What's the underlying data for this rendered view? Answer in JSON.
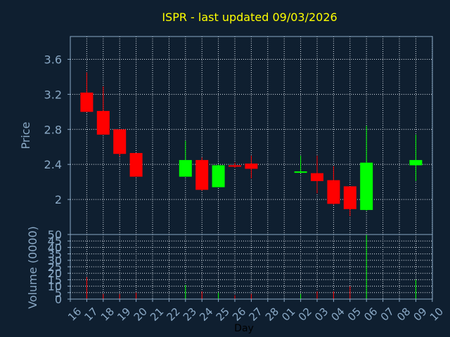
{
  "title": "ISPR - last updated 09/03/2026",
  "colors": {
    "background": "#0f1f30",
    "plot_border": "#8aa9c6",
    "grid": "#dde4ec",
    "title": "#ffff00",
    "label": "#8aa9c6",
    "up": "#00ff00",
    "down": "#ff0000",
    "axis_title": "#000000"
  },
  "chart_data": [
    {
      "type": "candlestick",
      "ylabel": "Price",
      "ylim": [
        1.6,
        3.86
      ],
      "yticks": [
        2,
        2.4,
        2.8,
        3.2,
        3.6
      ],
      "ytick_labels": [
        "2",
        "2.4",
        "2.8",
        "3.2",
        "3.6"
      ],
      "grid": true,
      "x_categories": [
        "16",
        "17",
        "18",
        "19",
        "20",
        "21",
        "22",
        "23",
        "24",
        "25",
        "26",
        "27",
        "28",
        "01",
        "02",
        "03",
        "04",
        "05",
        "06",
        "07",
        "08",
        "09",
        "10"
      ],
      "candles": [
        {
          "day": "17",
          "open": 3.22,
          "high": 3.45,
          "low": 3.0,
          "close": 3.0
        },
        {
          "day": "18",
          "open": 3.01,
          "high": 3.29,
          "low": 2.74,
          "close": 2.74
        },
        {
          "day": "19",
          "open": 2.8,
          "high": 2.8,
          "low": 2.49,
          "close": 2.52
        },
        {
          "day": "20",
          "open": 2.53,
          "high": 2.53,
          "low": 2.26,
          "close": 2.26
        },
        {
          "day": "23",
          "open": 2.26,
          "high": 2.67,
          "low": 2.26,
          "close": 2.45
        },
        {
          "day": "24",
          "open": 2.45,
          "high": 2.48,
          "low": 2.1,
          "close": 2.11
        },
        {
          "day": "25",
          "open": 2.14,
          "high": 2.4,
          "low": 2.14,
          "close": 2.39
        },
        {
          "day": "26",
          "open": 2.39,
          "high": 2.42,
          "low": 2.36,
          "close": 2.38
        },
        {
          "day": "27",
          "open": 2.41,
          "high": 2.5,
          "low": 2.24,
          "close": 2.35
        },
        {
          "day": "02",
          "open": 2.31,
          "high": 2.5,
          "low": 2.3,
          "close": 2.32
        },
        {
          "day": "03",
          "open": 2.3,
          "high": 2.5,
          "low": 2.07,
          "close": 2.21
        },
        {
          "day": "04",
          "open": 2.22,
          "high": 2.38,
          "low": 1.94,
          "close": 1.95
        },
        {
          "day": "05",
          "open": 2.15,
          "high": 2.15,
          "low": 1.81,
          "close": 1.89
        },
        {
          "day": "06",
          "open": 1.88,
          "high": 2.84,
          "low": 1.87,
          "close": 2.42
        },
        {
          "day": "09",
          "open": 2.39,
          "high": 2.74,
          "low": 2.21,
          "close": 2.45
        }
      ]
    },
    {
      "type": "bar",
      "ylabel": "Volume (0000)",
      "xlabel": "Day",
      "ylim": [
        0,
        50
      ],
      "yticks": [
        0,
        5,
        10,
        15,
        20,
        25,
        30,
        35,
        40,
        45,
        50
      ],
      "ytick_labels": [
        "0",
        "5",
        "10",
        "15",
        "20",
        "25",
        "30",
        "35",
        "40",
        "45",
        "50"
      ],
      "grid": true,
      "categories": [
        "16",
        "17",
        "18",
        "19",
        "20",
        "21",
        "22",
        "23",
        "24",
        "25",
        "26",
        "27",
        "28",
        "01",
        "02",
        "03",
        "04",
        "05",
        "06",
        "07",
        "08",
        "09",
        "10"
      ],
      "bars": [
        {
          "day": "17",
          "value": 17,
          "direction": "down"
        },
        {
          "day": "18",
          "value": 4,
          "direction": "down"
        },
        {
          "day": "19",
          "value": 4,
          "direction": "down"
        },
        {
          "day": "20",
          "value": 5,
          "direction": "down"
        },
        {
          "day": "23",
          "value": 11,
          "direction": "up"
        },
        {
          "day": "24",
          "value": 6,
          "direction": "down"
        },
        {
          "day": "25",
          "value": 5,
          "direction": "up"
        },
        {
          "day": "26",
          "value": 3,
          "direction": "down"
        },
        {
          "day": "27",
          "value": 4,
          "direction": "down"
        },
        {
          "day": "02",
          "value": 4,
          "direction": "up"
        },
        {
          "day": "03",
          "value": 6,
          "direction": "down"
        },
        {
          "day": "04",
          "value": 6,
          "direction": "down"
        },
        {
          "day": "05",
          "value": 10,
          "direction": "down"
        },
        {
          "day": "06",
          "value": 50,
          "direction": "up"
        },
        {
          "day": "09",
          "value": 15,
          "direction": "up"
        }
      ]
    }
  ]
}
